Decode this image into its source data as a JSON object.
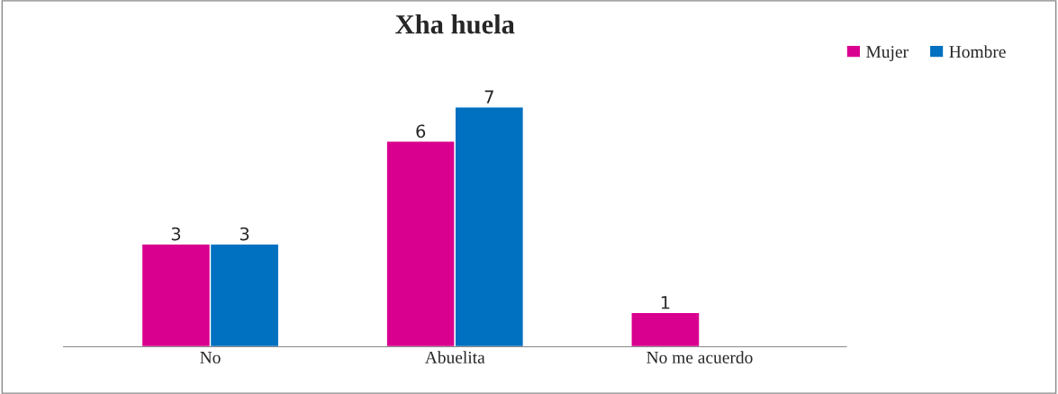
{
  "chart_data": {
    "type": "bar",
    "title": "Xha huela",
    "categories": [
      "No",
      "Abuelita",
      "No me acuerdo"
    ],
    "series": [
      {
        "name": "Mujer",
        "color": "#d9008f",
        "values": [
          3,
          6,
          1
        ]
      },
      {
        "name": "Hombre",
        "color": "#0070c0",
        "values": [
          3,
          7,
          null
        ]
      }
    ],
    "data_labels": true,
    "legend": "top right",
    "grid": false
  }
}
